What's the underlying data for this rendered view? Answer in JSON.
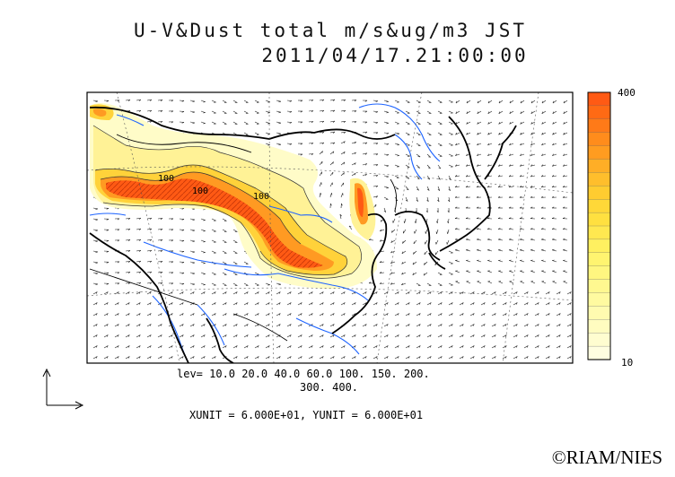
{
  "title": {
    "line1": "U-V&Dust total m/s&ug/m3 JST",
    "line2": "2011/04/17.21:00:00"
  },
  "levels": {
    "line1": "lev= 10.0 20.0 40.0 60.0 100. 150. 200.",
    "line2": "300. 400.",
    "values": [
      10,
      20,
      40,
      60,
      100,
      150,
      200,
      300,
      400
    ]
  },
  "units_text": "XUNIT = 6.000E+01, YUNIT = 6.000E+01",
  "colorbar": {
    "max_label": "400",
    "min_label": "10",
    "colors": [
      "#ff5a14",
      "#ff6a14",
      "#ff7a18",
      "#ff8c1c",
      "#ff9c20",
      "#ffae26",
      "#ffbe2c",
      "#ffcc30",
      "#ffd838",
      "#ffe040",
      "#ffe850",
      "#fff060",
      "#fff470",
      "#fff680",
      "#fff890",
      "#fffaa0",
      "#fffbb0",
      "#fffcc0",
      "#fffdd0",
      "#fffee0"
    ]
  },
  "contour_labels": [
    "100",
    "100",
    "100"
  ],
  "copyright": "©RIAM/NIES",
  "colors": {
    "coast": "#000000",
    "river": "#1e64ff",
    "dust_high": "#ff5a14",
    "dust_low": "#fffdd0"
  }
}
